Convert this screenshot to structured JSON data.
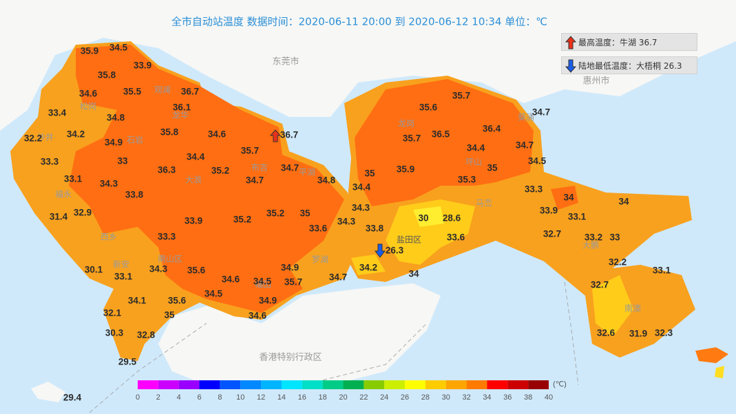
{
  "header": {
    "title": "全市自动站温度  数据时间：2020-06-11 20:00 到 2020-06-12 10:34  单位：℃"
  },
  "legend_boxes": [
    "最高温度：牛湖 36.7",
    "陆地最低温度：大梧桐 26.3"
  ],
  "regions": [
    "东莞市",
    "惠州市",
    "香港特别行政区",
    "盐田区"
  ],
  "districts": [
    "松岗",
    "沙井",
    "福永",
    "西乡",
    "新安",
    "南山区",
    "石岩",
    "龙华",
    "观澜",
    "大浪",
    "平湖",
    "布吉",
    "龙岗",
    "坪山",
    "葵涌",
    "大鹏",
    "南澳",
    "马峦",
    "罗湖",
    "福田"
  ],
  "stations": [
    35.9,
    34.5,
    35.8,
    33.9,
    34.6,
    35.5,
    36.7,
    33.4,
    36.1,
    34.8,
    32.2,
    34.2,
    35.8,
    34.6,
    36.7,
    34.9,
    35.7,
    33.3,
    33,
    34.4,
    34.7,
    36.3,
    35.2,
    33.1,
    34.3,
    34.7,
    34.8,
    35,
    35.9,
    34.4,
    33.8,
    32.9,
    34.3,
    35,
    35.2,
    31.4,
    35.2,
    33.9,
    33.6,
    34.3,
    33.8,
    30,
    28.6,
    33.3,
    33.6,
    26.3,
    30.1,
    34.3,
    35.6,
    34.9,
    34.2,
    33.1,
    34.6,
    34.5,
    35.7,
    34.7,
    34,
    34.5,
    34.1,
    35.6,
    34.9,
    32.1,
    35,
    34.6,
    30.3,
    32.8,
    29.5,
    29.4,
    35.7,
    35.6,
    34.7,
    36.4,
    35.7,
    36.5,
    34.4,
    34.7,
    35,
    34.5,
    35.3,
    33.3,
    34,
    34,
    33.9,
    33.1,
    32.7,
    33.2,
    33,
    32.2,
    33.1,
    32.7,
    32.6,
    31.9,
    32.3
  ],
  "colorbar": {
    "unit": "(℃)",
    "ticks": [
      0,
      2,
      4,
      6,
      8,
      10,
      12,
      14,
      16,
      18,
      20,
      22,
      24,
      26,
      28,
      30,
      32,
      34,
      36,
      38,
      40
    ],
    "colors": [
      "#ff00ff",
      "#cc00ff",
      "#9900ff",
      "#0000ff",
      "#0055ff",
      "#0088ff",
      "#00b4ff",
      "#00e5ff",
      "#00e0c8",
      "#00cc88",
      "#00b050",
      "#88cc00",
      "#ccee00",
      "#ffff00",
      "#ffcc00",
      "#ffa500",
      "#ff7a00",
      "#ff0000",
      "#cc0000",
      "#990000"
    ]
  }
}
